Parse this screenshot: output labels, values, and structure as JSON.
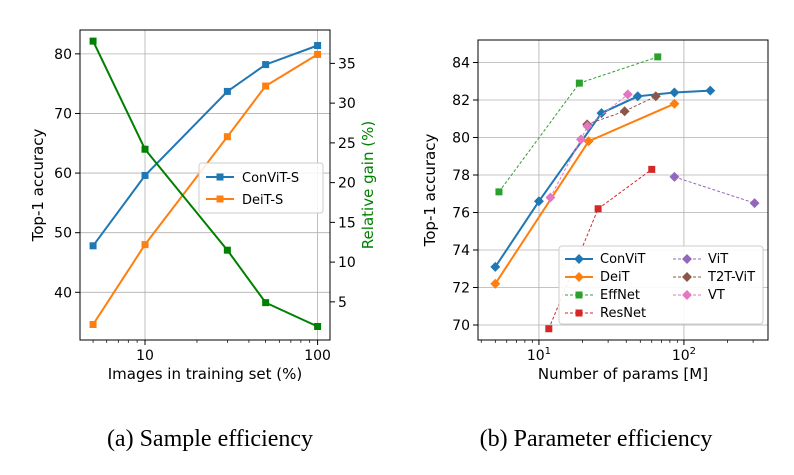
{
  "chart_data": [
    {
      "type": "line",
      "caption": "(a) Sample efficiency",
      "xlabel": "Images in training set (%)",
      "ylabel": "Top-1 accuracy",
      "y2label": "Relative gain (%)",
      "xscale": "log",
      "xlim": [
        4.2,
        118
      ],
      "ylim": [
        32,
        84
      ],
      "y2lim": [
        0.2,
        39.2
      ],
      "xticks": [
        {
          "v": 10,
          "label": "10"
        },
        {
          "v": 100,
          "label": "100"
        }
      ],
      "yticks": [
        40,
        50,
        60,
        70,
        80
      ],
      "y2ticks": [
        5,
        10,
        15,
        20,
        25,
        30,
        35
      ],
      "grid": true,
      "legend_position": "center-right",
      "series": [
        {
          "name": "ConViT-S",
          "axis": "left",
          "color": "#1f77b4",
          "marker": "square",
          "linestyle": "solid",
          "x": [
            5,
            10,
            30,
            50,
            100
          ],
          "y": [
            47.8,
            59.6,
            73.7,
            78.2,
            81.4
          ]
        },
        {
          "name": "DeiT-S",
          "axis": "left",
          "color": "#ff7f0e",
          "marker": "square",
          "linestyle": "solid",
          "x": [
            5,
            10,
            30,
            50,
            100
          ],
          "y": [
            34.6,
            48.0,
            66.1,
            74.6,
            79.9
          ]
        },
        {
          "name": "Relative gain",
          "axis": "right",
          "color": "#008000",
          "marker": "square",
          "linestyle": "solid",
          "in_legend": false,
          "x": [
            5,
            10,
            30,
            50,
            100
          ],
          "y": [
            37.8,
            24.2,
            11.5,
            4.9,
            1.9
          ]
        }
      ]
    },
    {
      "type": "line",
      "caption": "(b) Parameter efficiency",
      "xlabel": "Number of params [M]",
      "ylabel": "Top-1 accuracy",
      "xscale": "log",
      "xlim": [
        3.8,
        380
      ],
      "ylim": [
        69.2,
        85.2
      ],
      "xticks": [
        {
          "v": 10,
          "label": "10",
          "sup": "1"
        },
        {
          "v": 100,
          "label": "10",
          "sup": "2"
        }
      ],
      "yticks": [
        70,
        72,
        74,
        76,
        78,
        80,
        82,
        84
      ],
      "grid": true,
      "legend_position": "bottom-right",
      "series": [
        {
          "name": "ConViT",
          "color": "#1f77b4",
          "marker": "diamond",
          "linestyle": "solid",
          "x": [
            5,
            10,
            27,
            48,
            86,
            152
          ],
          "y": [
            73.1,
            76.6,
            81.3,
            82.2,
            82.4,
            82.5
          ]
        },
        {
          "name": "DeiT",
          "color": "#ff7f0e",
          "marker": "diamond",
          "linestyle": "solid",
          "x": [
            5,
            22,
            86
          ],
          "y": [
            72.2,
            79.8,
            81.8
          ]
        },
        {
          "name": "EffNet",
          "color": "#2ca02c",
          "marker": "square",
          "linestyle": "dashed",
          "x": [
            5.3,
            19,
            66
          ],
          "y": [
            77.1,
            82.9,
            84.3
          ]
        },
        {
          "name": "ResNet",
          "color": "#d62728",
          "marker": "square",
          "linestyle": "dashed",
          "x": [
            11.7,
            25.6,
            60
          ],
          "y": [
            69.8,
            76.2,
            78.3
          ]
        },
        {
          "name": "ViT",
          "color": "#9467bd",
          "marker": "diamond",
          "linestyle": "dashed",
          "x": [
            86,
            307
          ],
          "y": [
            77.9,
            76.5
          ]
        },
        {
          "name": "T2T-ViT",
          "color": "#8c564b",
          "marker": "diamond",
          "linestyle": "dashed",
          "x": [
            21.5,
            39,
            64
          ],
          "y": [
            80.7,
            81.4,
            82.2
          ]
        },
        {
          "name": "VT",
          "color": "#e377c2",
          "marker": "diamond",
          "linestyle": "dashed",
          "x": [
            12,
            19.5,
            21.6,
            41
          ],
          "y": [
            76.8,
            79.9,
            80.6,
            82.3
          ]
        }
      ]
    }
  ]
}
